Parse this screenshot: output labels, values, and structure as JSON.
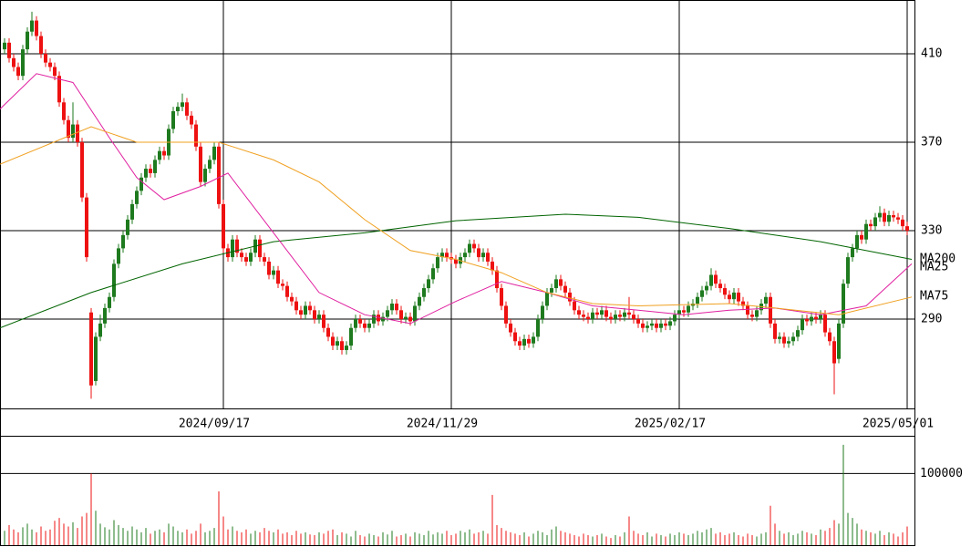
{
  "chart_data": [
    {
      "type": "candlestick",
      "xlim": [
        -1,
        199.6
      ],
      "xticks": [
        {
          "value": 48,
          "label": "2024/09/17"
        },
        {
          "value": 98,
          "label": "2024/11/29"
        },
        {
          "value": 148,
          "label": "2025/02/17"
        },
        {
          "value": 198,
          "label": "2025/05/01"
        }
      ],
      "ylim": [
        249.6,
        434.3
      ],
      "yticks": [
        290,
        330,
        370,
        410
      ],
      "grid": true,
      "up_color": "#1e7a1e",
      "down_color": "#ee1111",
      "open": [
        412,
        415,
        408,
        404,
        400,
        412,
        420,
        425,
        418,
        410,
        406,
        404,
        400,
        388,
        380,
        372,
        378,
        370,
        345,
        293,
        262,
        282,
        288,
        295,
        300,
        315,
        322,
        328,
        335,
        342,
        348,
        354,
        358,
        356,
        362,
        366,
        364,
        376,
        384,
        386,
        388,
        382,
        378,
        368,
        352,
        358,
        362,
        368,
        342,
        322,
        318,
        326,
        320,
        318,
        316,
        320,
        326,
        318,
        316,
        310,
        312,
        306,
        305,
        300,
        298,
        294,
        292,
        296,
        294,
        290,
        292,
        286,
        282,
        278,
        280,
        276,
        278,
        286,
        290,
        288,
        286,
        288,
        292,
        289,
        291,
        294,
        297,
        294,
        290,
        291,
        289,
        296,
        300,
        304,
        308,
        313,
        318,
        320,
        318,
        317,
        315,
        318,
        320,
        324,
        322,
        318,
        320,
        316,
        312,
        304,
        296,
        288,
        284,
        280,
        278,
        281,
        279,
        282,
        290,
        296,
        302,
        304,
        308,
        305,
        302,
        298,
        294,
        292,
        291,
        290,
        293,
        292,
        294,
        291,
        290,
        292,
        291,
        293,
        292,
        290,
        288,
        286,
        287,
        288,
        286,
        288,
        287,
        289,
        292,
        294,
        293,
        296,
        297,
        300,
        303,
        305,
        310,
        306,
        304,
        301,
        299,
        302,
        298,
        296,
        292,
        291,
        294,
        297,
        300,
        288,
        281,
        282,
        279,
        280,
        282,
        285,
        290,
        289,
        291,
        290,
        292,
        284,
        280,
        272,
        288,
        306,
        318,
        322,
        328,
        326,
        333,
        332,
        336,
        338,
        334,
        337,
        336,
        335,
        332
      ],
      "high": [
        417,
        417,
        410,
        406,
        414,
        422,
        429,
        427,
        420,
        412,
        408,
        406,
        402,
        390,
        382,
        388,
        380,
        372,
        347,
        295,
        284,
        292,
        297,
        302,
        317,
        324,
        330,
        337,
        344,
        350,
        356,
        360,
        360,
        364,
        368,
        368,
        378,
        386,
        388,
        392,
        390,
        384,
        380,
        370,
        360,
        364,
        370,
        370,
        344,
        324,
        328,
        328,
        322,
        320,
        322,
        328,
        328,
        320,
        318,
        314,
        314,
        308,
        307,
        302,
        300,
        296,
        298,
        298,
        296,
        294,
        294,
        288,
        284,
        282,
        282,
        280,
        288,
        292,
        292,
        290,
        290,
        294,
        294,
        293,
        296,
        299,
        299,
        296,
        293,
        293,
        298,
        302,
        306,
        310,
        315,
        320,
        322,
        322,
        320,
        319,
        320,
        322,
        326,
        326,
        324,
        322,
        322,
        318,
        314,
        306,
        298,
        290,
        286,
        282,
        283,
        283,
        284,
        292,
        298,
        304,
        306,
        310,
        310,
        307,
        304,
        300,
        296,
        294,
        293,
        295,
        295,
        296,
        296,
        293,
        294,
        294,
        295,
        300,
        294,
        292,
        290,
        289,
        290,
        290,
        290,
        290,
        291,
        294,
        296,
        296,
        298,
        299,
        302,
        305,
        307,
        313,
        312,
        308,
        306,
        303,
        304,
        304,
        300,
        298,
        294,
        296,
        299,
        302,
        302,
        290,
        284,
        284,
        282,
        284,
        287,
        292,
        292,
        293,
        293,
        294,
        294,
        286,
        282,
        290,
        308,
        320,
        324,
        330,
        330,
        335,
        335,
        338,
        341,
        340,
        339,
        339,
        338,
        337,
        334
      ],
      "low": [
        410,
        406,
        402,
        398,
        398,
        410,
        418,
        416,
        408,
        404,
        402,
        398,
        386,
        378,
        370,
        370,
        368,
        343,
        316,
        254,
        260,
        280,
        286,
        293,
        298,
        313,
        320,
        326,
        333,
        340,
        346,
        352,
        354,
        354,
        360,
        362,
        362,
        374,
        382,
        384,
        380,
        376,
        366,
        350,
        350,
        356,
        360,
        340,
        320,
        316,
        316,
        318,
        316,
        314,
        314,
        318,
        316,
        314,
        308,
        308,
        304,
        303,
        298,
        296,
        292,
        290,
        290,
        292,
        288,
        288,
        284,
        280,
        276,
        276,
        274,
        274,
        276,
        284,
        286,
        284,
        284,
        286,
        287,
        287,
        289,
        292,
        292,
        288,
        288,
        287,
        287,
        294,
        298,
        302,
        306,
        311,
        316,
        316,
        315,
        313,
        313,
        316,
        318,
        320,
        316,
        316,
        314,
        310,
        302,
        294,
        286,
        282,
        278,
        276,
        276,
        277,
        277,
        280,
        288,
        294,
        300,
        302,
        303,
        300,
        296,
        292,
        290,
        289,
        288,
        288,
        290,
        290,
        289,
        288,
        288,
        289,
        289,
        290,
        288,
        286,
        284,
        284,
        285,
        284,
        284,
        285,
        285,
        287,
        290,
        291,
        291,
        294,
        295,
        298,
        301,
        303,
        304,
        302,
        299,
        297,
        297,
        296,
        294,
        290,
        289,
        289,
        292,
        295,
        286,
        279,
        279,
        277,
        277,
        278,
        280,
        283,
        287,
        287,
        288,
        288,
        282,
        278,
        256,
        270,
        286,
        304,
        316,
        320,
        324,
        324,
        330,
        330,
        334,
        332,
        332,
        334,
        333,
        330,
        328
      ],
      "close": [
        415,
        408,
        404,
        400,
        412,
        420,
        425,
        418,
        410,
        406,
        404,
        400,
        388,
        380,
        372,
        378,
        370,
        345,
        318,
        260,
        282,
        288,
        295,
        300,
        315,
        322,
        328,
        335,
        342,
        348,
        354,
        358,
        356,
        362,
        366,
        364,
        376,
        384,
        386,
        388,
        382,
        378,
        368,
        352,
        358,
        362,
        368,
        342,
        322,
        318,
        326,
        320,
        318,
        316,
        320,
        326,
        318,
        316,
        310,
        312,
        306,
        305,
        300,
        298,
        294,
        292,
        296,
        294,
        290,
        292,
        286,
        282,
        278,
        280,
        276,
        278,
        286,
        290,
        288,
        286,
        288,
        292,
        289,
        291,
        294,
        297,
        294,
        290,
        291,
        289,
        296,
        300,
        304,
        308,
        313,
        318,
        320,
        318,
        317,
        315,
        318,
        320,
        324,
        322,
        318,
        320,
        316,
        312,
        304,
        296,
        288,
        284,
        280,
        278,
        281,
        279,
        282,
        290,
        296,
        302,
        304,
        308,
        305,
        302,
        298,
        294,
        292,
        291,
        290,
        293,
        292,
        294,
        291,
        290,
        292,
        291,
        293,
        292,
        290,
        288,
        286,
        287,
        288,
        286,
        288,
        287,
        289,
        292,
        294,
        293,
        296,
        297,
        300,
        303,
        305,
        310,
        306,
        304,
        301,
        299,
        302,
        298,
        296,
        292,
        291,
        294,
        297,
        300,
        288,
        281,
        282,
        279,
        280,
        282,
        285,
        290,
        289,
        291,
        290,
        292,
        284,
        280,
        270,
        288,
        306,
        318,
        322,
        328,
        326,
        333,
        332,
        336,
        338,
        334,
        337,
        336,
        335,
        332,
        330
      ],
      "series": [
        {
          "name": "MA200",
          "color": "#006400",
          "x": [
            -1,
            19,
            39,
            59,
            79,
            99,
            123,
            139,
            159,
            179,
            199
          ],
          "values": [
            286,
            302,
            315,
            325,
            329,
            334.5,
            337.4,
            336,
            331,
            325,
            317
          ]
        },
        {
          "name": "MA25",
          "color": "#e020a0",
          "x": [
            -1,
            7,
            15,
            23,
            29,
            35,
            43,
            49,
            59,
            69,
            79,
            89,
            99,
            109,
            119,
            129,
            139,
            149,
            159,
            169,
            179,
            189,
            199
          ],
          "values": [
            385,
            401,
            397,
            372,
            354,
            344,
            350,
            356,
            329,
            302,
            292,
            288,
            298,
            307,
            302,
            296,
            294,
            292,
            294,
            295,
            292,
            296,
            315
          ]
        },
        {
          "name": "MA75",
          "color": "#f0a020",
          "x": [
            -1,
            19,
            29,
            47,
            59,
            69,
            79,
            89,
            99,
            109,
            119,
            129,
            139,
            159,
            169,
            183,
            199
          ],
          "values": [
            360,
            377,
            370,
            370,
            362,
            352,
            335,
            321,
            317,
            311,
            302,
            297,
            296,
            297,
            295,
            292,
            300
          ]
        }
      ]
    },
    {
      "type": "bar",
      "ylim": [
        0,
        150000
      ],
      "yticks": [
        100000
      ],
      "values": [
        20000,
        28000,
        22000,
        18000,
        25000,
        30000,
        22000,
        18000,
        26000,
        20000,
        22000,
        34000,
        38000,
        30000,
        26000,
        32000,
        24000,
        40000,
        45000,
        100000,
        48000,
        30000,
        25000,
        22000,
        35000,
        28000,
        24000,
        20000,
        26000,
        22000,
        18000,
        24000,
        16000,
        20000,
        22000,
        18000,
        30000,
        26000,
        20000,
        18000,
        22000,
        16000,
        20000,
        30000,
        18000,
        20000,
        24000,
        75000,
        40000,
        22000,
        26000,
        20000,
        18000,
        22000,
        16000,
        20000,
        18000,
        24000,
        20000,
        18000,
        22000,
        16000,
        18000,
        14000,
        20000,
        16000,
        18000,
        15000,
        14000,
        18000,
        16000,
        20000,
        22000,
        14000,
        18000,
        16000,
        12000,
        20000,
        14000,
        12000,
        16000,
        14000,
        12000,
        18000,
        15000,
        20000,
        12000,
        14000,
        16000,
        12000,
        18000,
        16000,
        14000,
        20000,
        15000,
        18000,
        16000,
        20000,
        14000,
        16000,
        20000,
        18000,
        22000,
        16000,
        18000,
        20000,
        16000,
        70000,
        28000,
        24000,
        20000,
        18000,
        16000,
        14000,
        18000,
        12000,
        16000,
        20000,
        18000,
        14000,
        22000,
        26000,
        20000,
        18000,
        16000,
        14000,
        12000,
        16000,
        14000,
        12000,
        14000,
        16000,
        12000,
        10000,
        14000,
        12000,
        18000,
        40000,
        20000,
        16000,
        14000,
        18000,
        12000,
        16000,
        14000,
        12000,
        16000,
        14000,
        18000,
        16000,
        14000,
        16000,
        20000,
        18000,
        22000,
        24000,
        16000,
        18000,
        14000,
        16000,
        18000,
        14000,
        12000,
        16000,
        14000,
        12000,
        16000,
        18000,
        55000,
        30000,
        20000,
        16000,
        18000,
        14000,
        16000,
        20000,
        18000,
        16000,
        14000,
        22000,
        20000,
        24000,
        35000,
        30000,
        140000,
        45000,
        38000,
        30000,
        22000,
        20000,
        18000,
        16000,
        20000,
        14000,
        18000,
        16000,
        12000,
        18000,
        26000
      ]
    }
  ]
}
